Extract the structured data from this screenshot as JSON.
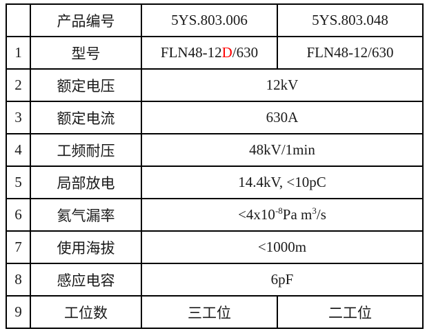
{
  "colors": {
    "border": "#000000",
    "text": "#1a1a1a",
    "highlight_red": "#ff0000",
    "background": "#ffffff"
  },
  "spec_table": {
    "header": {
      "index": "",
      "label": "产品编号",
      "product_code_1": "5YS.803.006",
      "product_code_2": "5YS.803.048"
    },
    "rows": {
      "r1": {
        "num": "1",
        "label": "型号",
        "model1_prefix": "FLN48-12",
        "model1_highlight": "D",
        "model1_suffix": "/630",
        "model2": "FLN48-12/630"
      },
      "r2": {
        "num": "2",
        "label": "额定电压",
        "value": "12kV"
      },
      "r3": {
        "num": "3",
        "label": "额定电流",
        "value": "630A"
      },
      "r4": {
        "num": "4",
        "label": "工频耐压",
        "value": "48kV/1min"
      },
      "r5": {
        "num": "5",
        "label": "局部放电",
        "value": "14.4kV, <10pC"
      },
      "r6": {
        "num": "6",
        "label": "氦气漏率",
        "value_p1": "<4x10",
        "value_sup1": "-8",
        "value_p2": "Pa m",
        "value_sup2": "3",
        "value_p3": "/s"
      },
      "r7": {
        "num": "7",
        "label": "使用海拔",
        "value": "<1000m"
      },
      "r8": {
        "num": "8",
        "label": "感应电容",
        "value": "6pF"
      },
      "r9": {
        "num": "9",
        "label": "工位数",
        "value1": "三工位",
        "value2": "二工位"
      }
    }
  }
}
